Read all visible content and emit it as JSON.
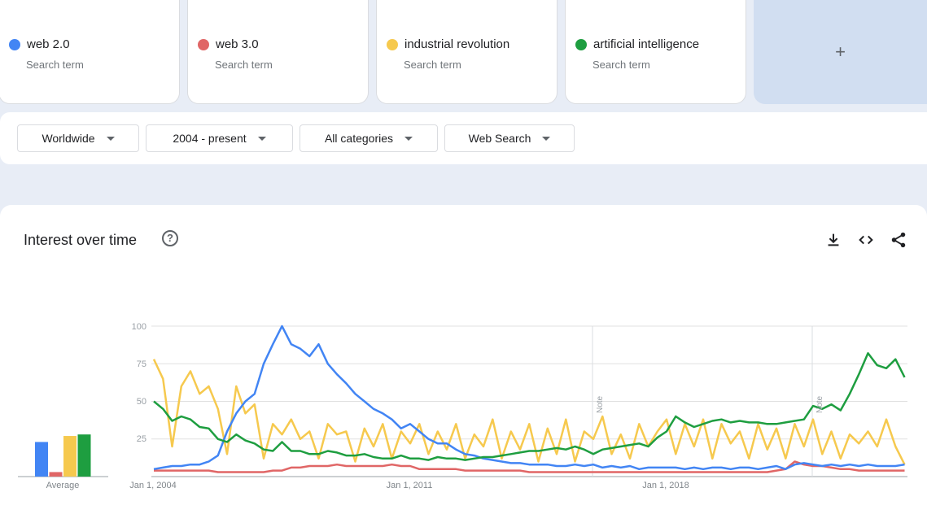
{
  "terms": [
    {
      "label": "web 2.0",
      "sub": "Search term",
      "color": "#4285f4"
    },
    {
      "label": "web 3.0",
      "sub": "Search term",
      "color": "#e06666"
    },
    {
      "label": "industrial revolution",
      "sub": "Search term",
      "color": "#f6c94e"
    },
    {
      "label": "artificial intelligence",
      "sub": "Search term",
      "color": "#1e9e40"
    }
  ],
  "add_label": "+",
  "filters": {
    "region": "Worldwide",
    "time": "2004 - present",
    "category": "All categories",
    "type": "Web Search"
  },
  "panel": {
    "title": "Interest over time",
    "help": "?"
  },
  "chart_data": {
    "type": "line",
    "title": "Interest over time",
    "x_start": 2004,
    "x_step_years": 0.25,
    "xticks": [
      "Jan 1, 2004",
      "Jan 1, 2011",
      "Jan 1, 2018"
    ],
    "ytick_labels": [
      "100",
      "75",
      "50",
      "25"
    ],
    "ylim": [
      0,
      100
    ],
    "notes": [
      "Note",
      "Note"
    ],
    "average_label": "Average",
    "averages": [
      23,
      3,
      27,
      28
    ],
    "series": [
      {
        "name": "web 2.0",
        "color": "#4285f4",
        "values": [
          5,
          6,
          7,
          7,
          8,
          8,
          10,
          14,
          30,
          42,
          50,
          55,
          75,
          88,
          100,
          88,
          85,
          80,
          88,
          75,
          68,
          62,
          55,
          50,
          45,
          42,
          38,
          32,
          35,
          30,
          25,
          22,
          22,
          18,
          15,
          14,
          12,
          11,
          10,
          9,
          9,
          8,
          8,
          8,
          7,
          7,
          8,
          7,
          8,
          6,
          7,
          6,
          7,
          5,
          6,
          6,
          6,
          6,
          5,
          6,
          5,
          6,
          6,
          5,
          6,
          6,
          5,
          6,
          7,
          5,
          8,
          9,
          8,
          7,
          8,
          7,
          8,
          7,
          8,
          7,
          7,
          7,
          8
        ]
      },
      {
        "name": "web 3.0",
        "color": "#e06666",
        "values": [
          4,
          4,
          4,
          4,
          4,
          4,
          4,
          3,
          3,
          3,
          3,
          3,
          3,
          4,
          4,
          6,
          6,
          7,
          7,
          7,
          8,
          7,
          7,
          7,
          7,
          7,
          8,
          7,
          7,
          5,
          5,
          5,
          5,
          5,
          4,
          4,
          4,
          4,
          4,
          4,
          4,
          3,
          3,
          3,
          3,
          3,
          3,
          3,
          3,
          3,
          3,
          3,
          3,
          3,
          3,
          3,
          3,
          3,
          3,
          3,
          3,
          3,
          3,
          3,
          3,
          3,
          3,
          3,
          4,
          5,
          10,
          8,
          7,
          7,
          6,
          5,
          5,
          4,
          4,
          4,
          4,
          4,
          4
        ]
      },
      {
        "name": "industrial revolution",
        "color": "#f6c94e",
        "values": [
          78,
          65,
          20,
          60,
          70,
          55,
          60,
          45,
          15,
          60,
          42,
          48,
          12,
          35,
          28,
          38,
          25,
          30,
          12,
          35,
          28,
          30,
          10,
          32,
          20,
          35,
          12,
          30,
          22,
          35,
          15,
          30,
          18,
          35,
          12,
          28,
          20,
          38,
          12,
          30,
          18,
          35,
          10,
          32,
          15,
          38,
          10,
          30,
          25,
          40,
          15,
          28,
          12,
          35,
          20,
          30,
          38,
          15,
          35,
          20,
          38,
          12,
          35,
          22,
          30,
          12,
          35,
          18,
          32,
          12,
          35,
          20,
          38,
          15,
          30,
          12,
          28,
          22,
          30,
          20,
          38,
          20,
          8
        ]
      },
      {
        "name": "artificial intelligence",
        "color": "#1e9e40",
        "values": [
          50,
          45,
          37,
          40,
          38,
          33,
          32,
          25,
          23,
          28,
          24,
          22,
          18,
          17,
          23,
          17,
          17,
          15,
          15,
          17,
          16,
          14,
          14,
          15,
          13,
          12,
          12,
          14,
          12,
          12,
          11,
          13,
          12,
          12,
          11,
          12,
          13,
          13,
          14,
          15,
          16,
          17,
          17,
          18,
          19,
          18,
          20,
          18,
          15,
          18,
          19,
          20,
          21,
          22,
          20,
          26,
          30,
          40,
          36,
          33,
          35,
          37,
          38,
          36,
          37,
          36,
          36,
          35,
          35,
          36,
          37,
          38,
          47,
          45,
          48,
          44,
          55,
          68,
          82,
          74,
          72,
          78,
          66
        ]
      }
    ]
  }
}
